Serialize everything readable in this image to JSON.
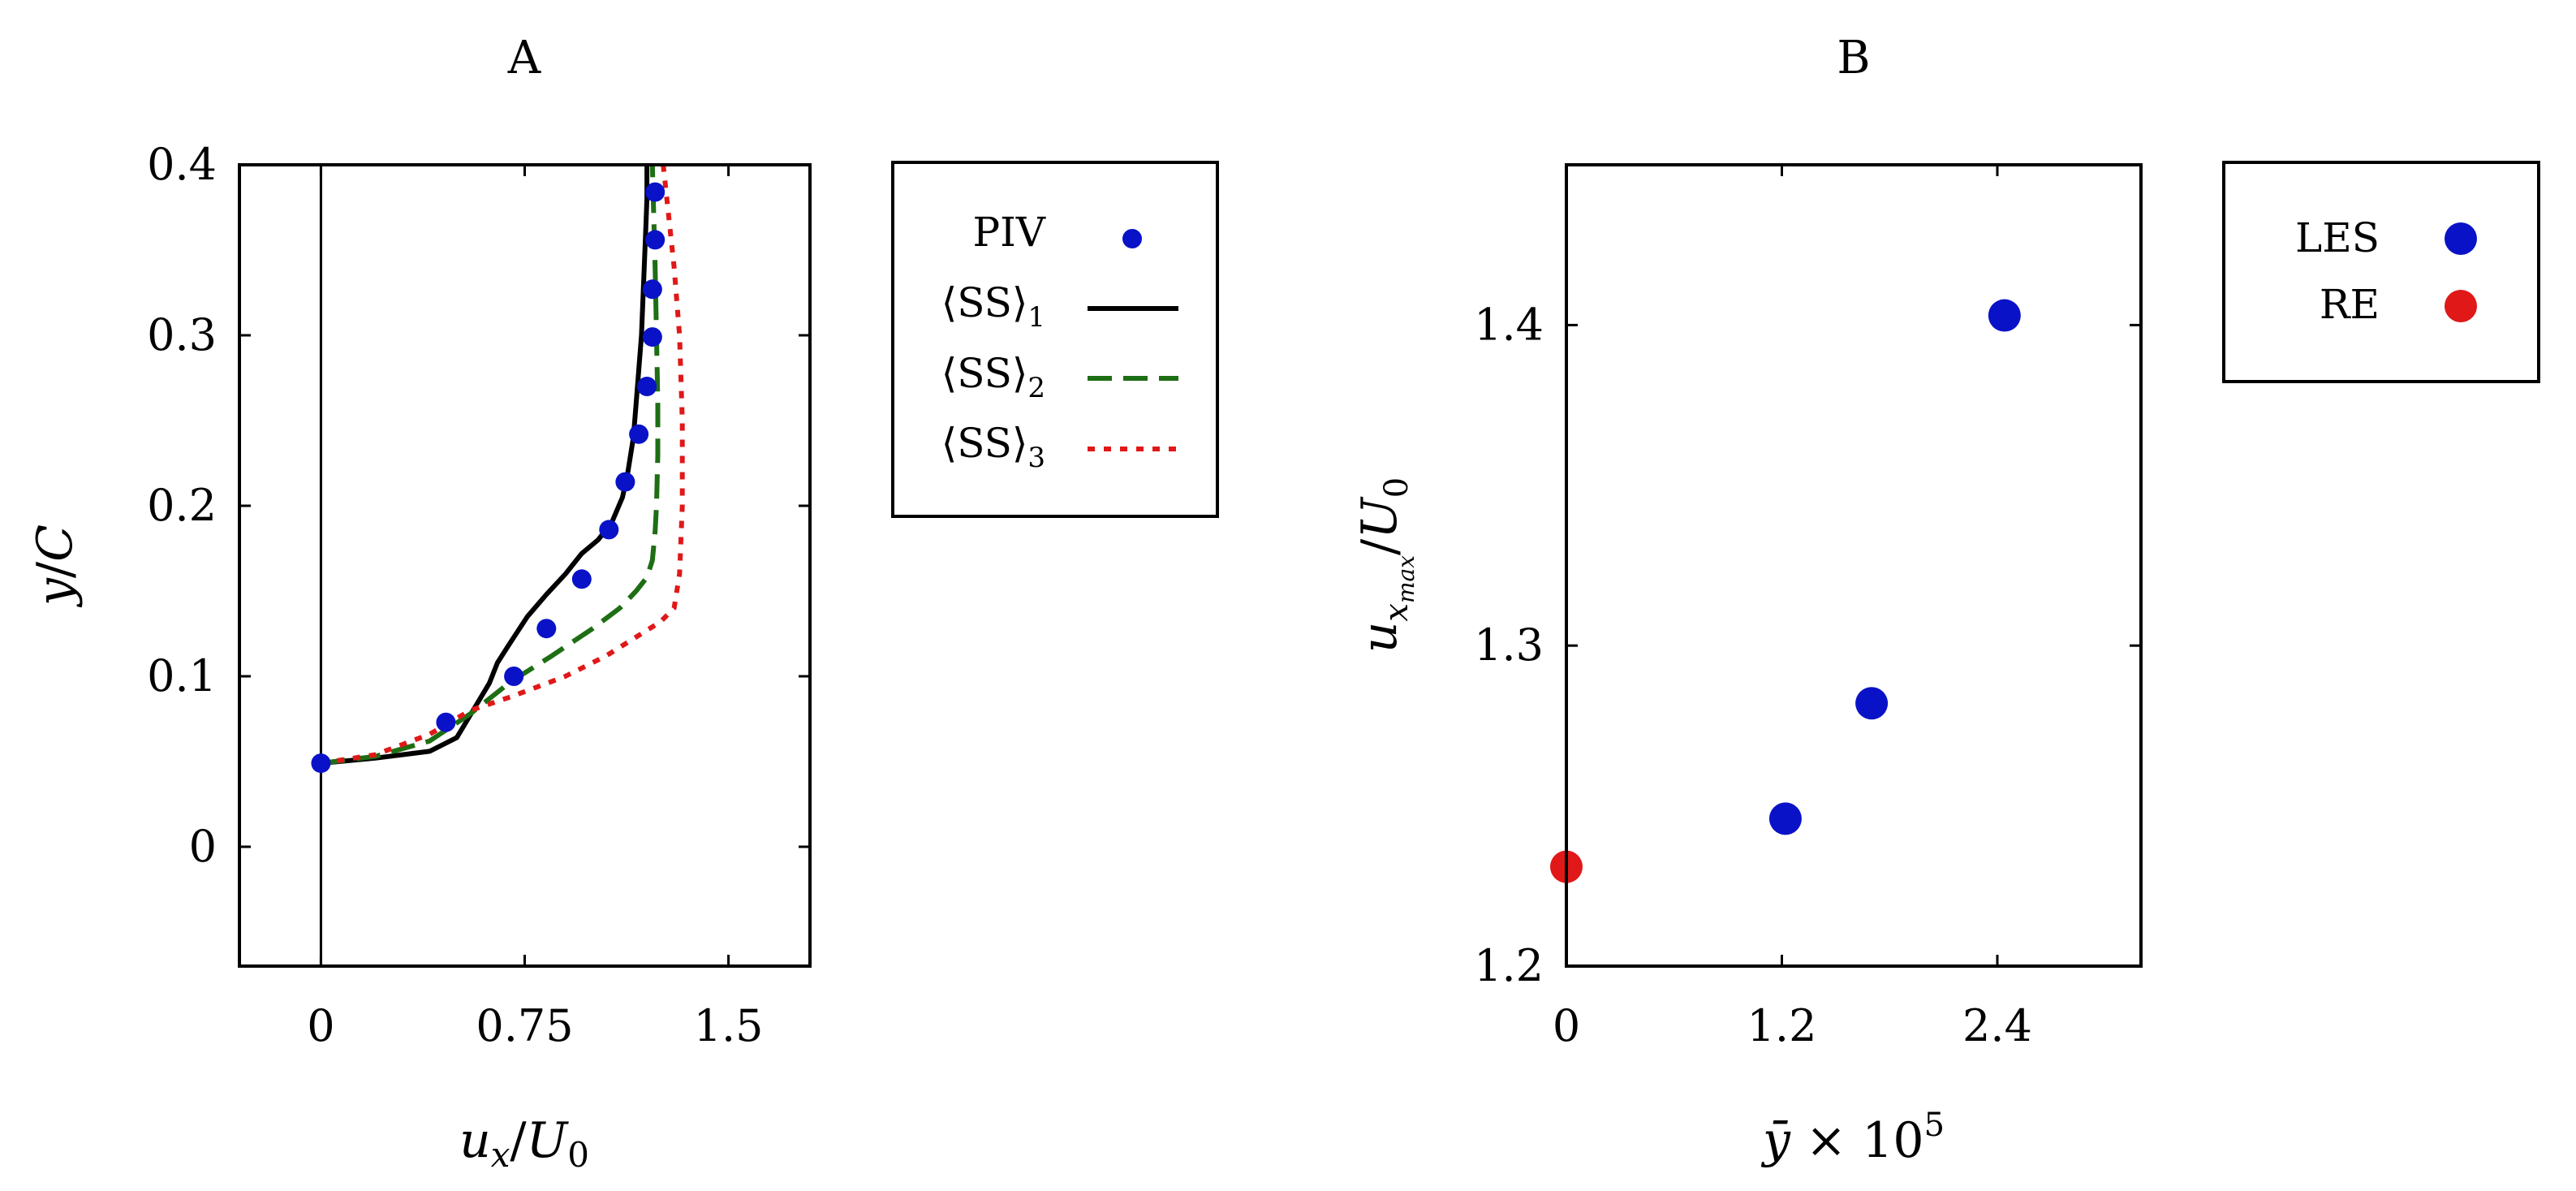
{
  "chart_data": [
    {
      "type": "line",
      "title": "A",
      "xlabel": "u_x/U_0",
      "ylabel": "y/C",
      "xlim": [
        -0.3,
        1.8
      ],
      "ylim": [
        -0.07,
        0.4
      ],
      "x_ticks": [
        {
          "value": 0,
          "label": "0"
        },
        {
          "value": 0.75,
          "label": "0.75"
        },
        {
          "value": 1.5,
          "label": "1.5"
        }
      ],
      "y_ticks": [
        {
          "value": 0,
          "label": "0"
        },
        {
          "value": 0.1,
          "label": "0.1"
        },
        {
          "value": 0.2,
          "label": "0.2"
        },
        {
          "value": 0.3,
          "label": "0.3"
        },
        {
          "value": 0.4,
          "label": "0.4"
        }
      ],
      "series": [
        {
          "name": "PIV",
          "legend_label": "PIV",
          "style": "points",
          "color": "#0a12c8",
          "points": [
            [
              0.0,
              0.049
            ],
            [
              0.46,
              0.073
            ],
            [
              0.71,
              0.1
            ],
            [
              0.83,
              0.128
            ],
            [
              0.96,
              0.157
            ],
            [
              1.06,
              0.186
            ],
            [
              1.12,
              0.214
            ],
            [
              1.17,
              0.242
            ],
            [
              1.2,
              0.27
            ],
            [
              1.22,
              0.299
            ],
            [
              1.22,
              0.327
            ],
            [
              1.23,
              0.356
            ],
            [
              1.23,
              0.384
            ]
          ]
        },
        {
          "name": "SS1",
          "legend_base": "⟨SS⟩",
          "legend_sub": "1",
          "style": "solid",
          "color": "#000000",
          "points": [
            [
              0.0,
              0.049
            ],
            [
              0.2,
              0.052
            ],
            [
              0.4,
              0.056
            ],
            [
              0.5,
              0.064
            ],
            [
              0.56,
              0.08
            ],
            [
              0.62,
              0.096
            ],
            [
              0.65,
              0.108
            ],
            [
              0.69,
              0.118
            ],
            [
              0.76,
              0.135
            ],
            [
              0.83,
              0.148
            ],
            [
              0.9,
              0.16
            ],
            [
              0.96,
              0.172
            ],
            [
              1.02,
              0.18
            ],
            [
              1.07,
              0.19
            ],
            [
              1.11,
              0.205
            ],
            [
              1.13,
              0.22
            ],
            [
              1.15,
              0.24
            ],
            [
              1.16,
              0.26
            ],
            [
              1.17,
              0.28
            ],
            [
              1.18,
              0.3
            ],
            [
              1.185,
              0.32
            ],
            [
              1.19,
              0.34
            ],
            [
              1.195,
              0.36
            ],
            [
              1.2,
              0.38
            ],
            [
              1.2,
              0.4
            ]
          ]
        },
        {
          "name": "SS2",
          "legend_base": "⟨SS⟩",
          "legend_sub": "2",
          "style": "dashed",
          "color": "#1e6e14",
          "points": [
            [
              0.0,
              0.049
            ],
            [
              0.2,
              0.053
            ],
            [
              0.4,
              0.062
            ],
            [
              0.55,
              0.078
            ],
            [
              0.7,
              0.097
            ],
            [
              0.85,
              0.112
            ],
            [
              1.0,
              0.128
            ],
            [
              1.1,
              0.14
            ],
            [
              1.16,
              0.15
            ],
            [
              1.2,
              0.158
            ],
            [
              1.22,
              0.168
            ],
            [
              1.23,
              0.185
            ],
            [
              1.235,
              0.2
            ],
            [
              1.24,
              0.23
            ],
            [
              1.24,
              0.26
            ],
            [
              1.235,
              0.3
            ],
            [
              1.23,
              0.34
            ],
            [
              1.225,
              0.37
            ],
            [
              1.22,
              0.4
            ]
          ]
        },
        {
          "name": "SS3",
          "legend_base": "⟨SS⟩",
          "legend_sub": "3",
          "style": "dotted",
          "color": "#e01818",
          "points": [
            [
              0.0,
              0.049
            ],
            [
              0.2,
              0.054
            ],
            [
              0.4,
              0.066
            ],
            [
              0.55,
              0.08
            ],
            [
              0.7,
              0.088
            ],
            [
              0.9,
              0.1
            ],
            [
              1.05,
              0.112
            ],
            [
              1.15,
              0.122
            ],
            [
              1.25,
              0.132
            ],
            [
              1.3,
              0.14
            ],
            [
              1.32,
              0.16
            ],
            [
              1.33,
              0.2
            ],
            [
              1.33,
              0.25
            ],
            [
              1.32,
              0.3
            ],
            [
              1.3,
              0.34
            ],
            [
              1.28,
              0.37
            ],
            [
              1.26,
              0.4
            ]
          ]
        }
      ]
    },
    {
      "type": "scatter",
      "title": "B",
      "xlabel": "ȳ × 10^5",
      "ylabel": "u_xmax/U_0",
      "xlim": [
        0,
        3.2
      ],
      "ylim": [
        1.2,
        1.45
      ],
      "x_ticks": [
        {
          "value": 0,
          "label": "0"
        },
        {
          "value": 1.2,
          "label": "1.2"
        },
        {
          "value": 2.4,
          "label": "2.4"
        }
      ],
      "y_ticks": [
        {
          "value": 1.2,
          "label": "1.2"
        },
        {
          "value": 1.3,
          "label": "1.3"
        },
        {
          "value": 1.4,
          "label": "1.4"
        }
      ],
      "series": [
        {
          "name": "LES",
          "legend_label": "LES",
          "color": "#0a12c8",
          "points": [
            [
              1.22,
              1.246
            ],
            [
              1.7,
              1.282
            ],
            [
              2.44,
              1.403
            ]
          ]
        },
        {
          "name": "RE",
          "legend_label": "RE",
          "color": "#e01818",
          "points": [
            [
              0.0,
              1.231
            ]
          ]
        }
      ]
    }
  ]
}
